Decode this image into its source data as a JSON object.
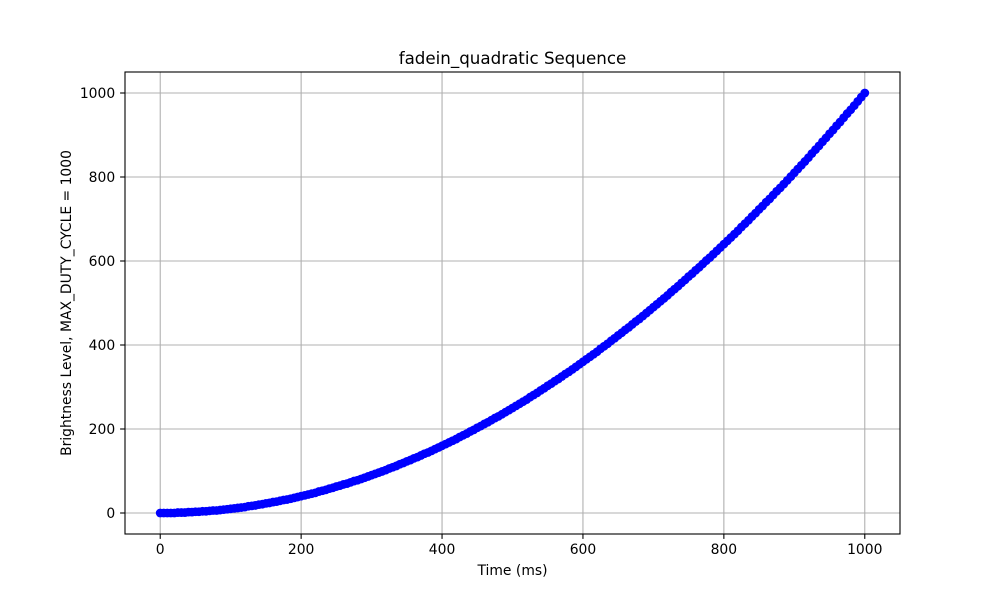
{
  "chart_data": {
    "type": "scatter",
    "title": "fadein_quadratic Sequence",
    "xlabel": "Time (ms)",
    "ylabel": "Brightness Level, MAX_DUTY_CYCLE = 1000",
    "xlim": [
      -50,
      1050
    ],
    "ylim": [
      -50,
      1050
    ],
    "xticks": [
      0,
      200,
      400,
      600,
      800,
      1000
    ],
    "yticks": [
      0,
      200,
      400,
      600,
      800,
      1000
    ],
    "xtick_labels": [
      "0",
      "200",
      "400",
      "600",
      "800",
      "1000"
    ],
    "ytick_labels": [
      "0",
      "200",
      "400",
      "600",
      "800",
      "1000"
    ],
    "grid": true,
    "grid_color": "#b0b0b0",
    "series": [
      {
        "color": "#0000ff",
        "marker": "circle",
        "x": [
          0,
          5,
          10,
          15,
          20,
          25,
          30,
          35,
          40,
          45,
          50,
          55,
          60,
          65,
          70,
          75,
          80,
          85,
          90,
          95,
          100,
          105,
          110,
          115,
          120,
          125,
          130,
          135,
          140,
          145,
          150,
          155,
          160,
          165,
          170,
          175,
          180,
          185,
          190,
          195,
          200,
          205,
          210,
          215,
          220,
          225,
          230,
          235,
          240,
          245,
          250,
          255,
          260,
          265,
          270,
          275,
          280,
          285,
          290,
          295,
          300,
          305,
          310,
          315,
          320,
          325,
          330,
          335,
          340,
          345,
          350,
          355,
          360,
          365,
          370,
          375,
          380,
          385,
          390,
          395,
          400,
          405,
          410,
          415,
          420,
          425,
          430,
          435,
          440,
          445,
          450,
          455,
          460,
          465,
          470,
          475,
          480,
          485,
          490,
          495,
          500,
          505,
          510,
          515,
          520,
          525,
          530,
          535,
          540,
          545,
          550,
          555,
          560,
          565,
          570,
          575,
          580,
          585,
          590,
          595,
          600,
          605,
          610,
          615,
          620,
          625,
          630,
          635,
          640,
          645,
          650,
          655,
          660,
          665,
          670,
          675,
          680,
          685,
          690,
          695,
          700,
          705,
          710,
          715,
          720,
          725,
          730,
          735,
          740,
          745,
          750,
          755,
          760,
          765,
          770,
          775,
          780,
          785,
          790,
          795,
          800,
          805,
          810,
          815,
          820,
          825,
          830,
          835,
          840,
          845,
          850,
          855,
          860,
          865,
          870,
          875,
          880,
          885,
          890,
          895,
          900,
          905,
          910,
          915,
          920,
          925,
          930,
          935,
          940,
          945,
          950,
          955,
          960,
          965,
          970,
          975,
          980,
          985,
          990,
          995,
          1000
        ],
        "y": [
          0,
          0,
          0,
          0,
          0,
          1,
          1,
          1,
          2,
          2,
          3,
          3,
          4,
          4,
          5,
          6,
          6,
          7,
          8,
          9,
          10,
          11,
          12,
          13,
          14,
          16,
          17,
          18,
          20,
          21,
          23,
          24,
          26,
          27,
          29,
          31,
          32,
          34,
          36,
          38,
          40,
          42,
          44,
          46,
          48,
          51,
          53,
          55,
          58,
          60,
          63,
          65,
          68,
          70,
          73,
          76,
          78,
          81,
          84,
          87,
          90,
          93,
          96,
          99,
          102,
          106,
          109,
          112,
          116,
          119,
          123,
          126,
          130,
          133,
          137,
          141,
          144,
          148,
          152,
          156,
          160,
          164,
          168,
          172,
          176,
          181,
          185,
          189,
          194,
          198,
          203,
          207,
          212,
          216,
          221,
          226,
          230,
          235,
          240,
          245,
          250,
          255,
          260,
          265,
          270,
          276,
          281,
          286,
          292,
          297,
          303,
          308,
          314,
          319,
          325,
          331,
          336,
          342,
          348,
          354,
          360,
          366,
          372,
          378,
          384,
          391,
          397,
          403,
          410,
          416,
          423,
          429,
          436,
          442,
          449,
          456,
          462,
          469,
          476,
          483,
          490,
          497,
          504,
          511,
          518,
          526,
          533,
          540,
          548,
          555,
          563,
          570,
          578,
          585,
          593,
          601,
          608,
          616,
          624,
          632,
          640,
          648,
          656,
          664,
          672,
          681,
          689,
          697,
          706,
          714,
          723,
          731,
          740,
          748,
          757,
          766,
          774,
          783,
          792,
          801,
          810,
          819,
          828,
          837,
          846,
          856,
          865,
          874,
          884,
          893,
          903,
          912,
          922,
          931,
          941,
          951,
          960,
          970,
          980,
          990,
          1000
        ]
      }
    ]
  }
}
